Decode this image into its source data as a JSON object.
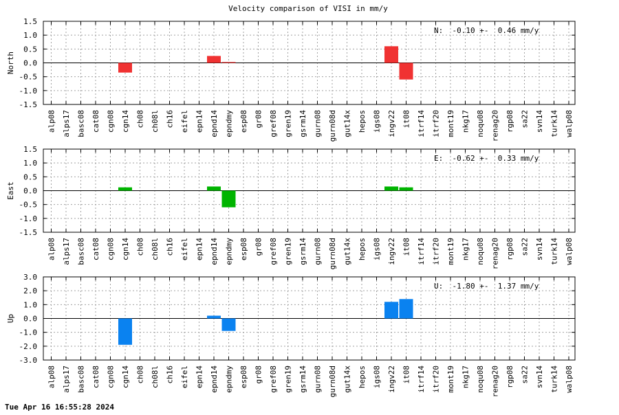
{
  "title": "Velocity comparison of VISI in mm/y",
  "timestamp": "Tue Apr 16 16:55:28 2024",
  "chart_data": [
    {
      "type": "bar",
      "title": "Velocity comparison of VISI in mm/y",
      "ylabel": "North",
      "ylim": [
        -1.5,
        1.5
      ],
      "yticks": [
        "1.5",
        "1.0",
        "0.5",
        "0.0",
        "-0.5",
        "-1.0",
        "-1.5"
      ],
      "grid": true,
      "color": "#f03232",
      "annotation": "N:  -0.10 +-  0.46 mm/y",
      "categories": [
        "alp08",
        "alps17",
        "basc08",
        "cat08",
        "cgn08",
        "cgn14",
        "ch08",
        "ch08l",
        "ch16",
        "eifel",
        "epn14",
        "epnd14",
        "epndmy",
        "esp08",
        "gr08",
        "gref08",
        "gren19",
        "gsrm14",
        "gurn08",
        "gurn08d",
        "gut14x",
        "hepos",
        "igs08",
        "ingv22",
        "it08",
        "itrf14",
        "itrf20",
        "mont19",
        "nkg17",
        "noqu08",
        "renag20",
        "rgp08",
        "sa22",
        "svn14",
        "turk14",
        "walp08"
      ],
      "values": [
        0,
        0,
        0,
        0,
        0,
        -0.35,
        0,
        0,
        0,
        0,
        0,
        0.25,
        0.03,
        0,
        0,
        0,
        0,
        0,
        0,
        0,
        0,
        0,
        0,
        0.6,
        -0.6,
        0,
        0,
        0,
        0,
        0,
        0,
        0,
        0,
        0,
        0,
        0
      ]
    },
    {
      "type": "bar",
      "title": "",
      "ylabel": "East",
      "ylim": [
        -1.5,
        1.5
      ],
      "yticks": [
        "1.5",
        "1.0",
        "0.5",
        "0.0",
        "-0.5",
        "-1.0",
        "-1.5"
      ],
      "grid": true,
      "color": "#00b400",
      "annotation": "E:  -0.62 +-  0.33 mm/y",
      "categories": [
        "alp08",
        "alps17",
        "basc08",
        "cat08",
        "cgn08",
        "cgn14",
        "ch08",
        "ch08l",
        "ch16",
        "eifel",
        "epn14",
        "epnd14",
        "epndmy",
        "esp08",
        "gr08",
        "gref08",
        "gren19",
        "gsrm14",
        "gurn08",
        "gurn08d",
        "gut14x",
        "hepos",
        "igs08",
        "ingv22",
        "it08",
        "itrf14",
        "itrf20",
        "mont19",
        "nkg17",
        "noqu08",
        "renag20",
        "rgp08",
        "sa22",
        "svn14",
        "turk14",
        "walp08"
      ],
      "values": [
        0,
        0,
        0,
        0,
        0,
        0.12,
        0,
        0,
        0,
        0,
        0,
        0.15,
        -0.6,
        0,
        0,
        0,
        0,
        0,
        0,
        0,
        0,
        0,
        0,
        0.15,
        0.12,
        0,
        0,
        0,
        0,
        0,
        0,
        0,
        0,
        0,
        0,
        0
      ]
    },
    {
      "type": "bar",
      "title": "",
      "ylabel": "Up",
      "ylim": [
        -3.0,
        3.0
      ],
      "yticks": [
        "3.0",
        "2.0",
        "1.0",
        "0.0",
        "-1.0",
        "-2.0",
        "-3.0"
      ],
      "grid": true,
      "color": "#0a82f0",
      "annotation": "U:  -1.80 +-  1.37 mm/y",
      "categories": [
        "alp08",
        "alps17",
        "basc08",
        "cat08",
        "cgn08",
        "cgn14",
        "ch08",
        "ch08l",
        "ch16",
        "eifel",
        "epn14",
        "epnd14",
        "epndmy",
        "esp08",
        "gr08",
        "gref08",
        "gren19",
        "gsrm14",
        "gurn08",
        "gurn08d",
        "gut14x",
        "hepos",
        "igs08",
        "ingv22",
        "it08",
        "itrf14",
        "itrf20",
        "mont19",
        "nkg17",
        "noqu08",
        "renag20",
        "rgp08",
        "sa22",
        "svn14",
        "turk14",
        "walp08"
      ],
      "values": [
        0,
        0,
        0,
        0,
        0,
        -1.9,
        0,
        0,
        0,
        0,
        0,
        0.2,
        -0.9,
        0,
        0,
        0,
        0,
        0,
        0,
        0,
        0,
        0,
        0,
        1.2,
        1.4,
        0,
        0,
        0,
        0,
        0,
        0,
        0,
        0,
        0,
        0,
        0
      ]
    }
  ]
}
